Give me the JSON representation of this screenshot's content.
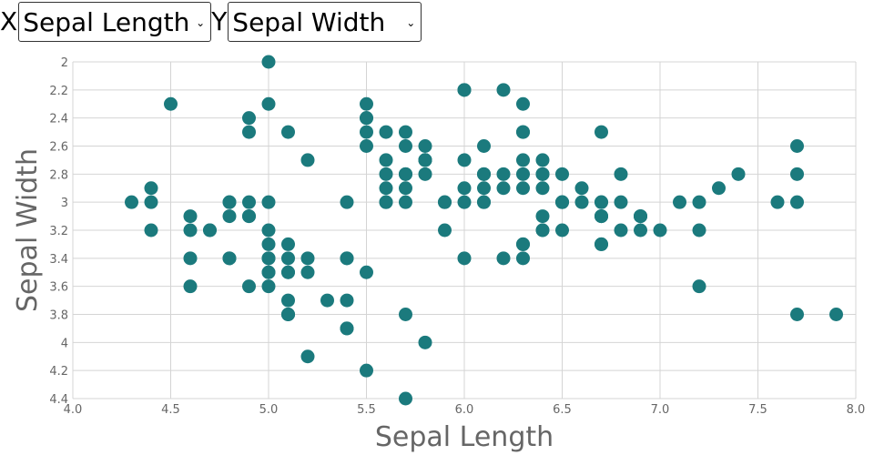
{
  "controls": {
    "x_prefix": "X",
    "y_prefix": "Y",
    "x_selected": "Sepal Length",
    "y_selected": "Sepal Width"
  },
  "colors": {
    "point": "#1b7a7d",
    "grid": "#d4d4d4",
    "label": "#666666"
  },
  "chart_data": {
    "type": "scatter",
    "xlabel": "Sepal Length",
    "ylabel": "Sepal Width",
    "xlim": [
      4.0,
      8.0
    ],
    "ylim": [
      2.0,
      4.4
    ],
    "y_inverted": true,
    "grid": true,
    "x_ticks": [
      "4.0",
      "4.5",
      "5.0",
      "5.5",
      "6.0",
      "6.5",
      "7.0",
      "7.5",
      "8.0"
    ],
    "y_ticks": [
      "2",
      "2.2",
      "2.4",
      "2.6",
      "2.8",
      "3",
      "3.2",
      "3.4",
      "3.6",
      "3.8",
      "4",
      "4.2",
      "4.4"
    ],
    "points": [
      [
        5.1,
        3.5
      ],
      [
        4.9,
        3.0
      ],
      [
        4.7,
        3.2
      ],
      [
        4.6,
        3.1
      ],
      [
        5.0,
        3.6
      ],
      [
        5.4,
        3.9
      ],
      [
        4.6,
        3.4
      ],
      [
        5.0,
        3.4
      ],
      [
        4.4,
        2.9
      ],
      [
        4.9,
        3.1
      ],
      [
        5.4,
        3.7
      ],
      [
        4.8,
        3.4
      ],
      [
        4.8,
        3.0
      ],
      [
        4.3,
        3.0
      ],
      [
        5.8,
        4.0
      ],
      [
        5.7,
        4.4
      ],
      [
        5.4,
        3.9
      ],
      [
        5.1,
        3.5
      ],
      [
        5.7,
        3.8
      ],
      [
        5.1,
        3.8
      ],
      [
        5.4,
        3.4
      ],
      [
        5.1,
        3.7
      ],
      [
        4.6,
        3.6
      ],
      [
        5.1,
        3.3
      ],
      [
        4.8,
        3.4
      ],
      [
        5.0,
        3.0
      ],
      [
        5.0,
        3.4
      ],
      [
        5.2,
        3.5
      ],
      [
        5.2,
        3.4
      ],
      [
        4.7,
        3.2
      ],
      [
        4.8,
        3.1
      ],
      [
        5.4,
        3.4
      ],
      [
        5.2,
        4.1
      ],
      [
        5.5,
        4.2
      ],
      [
        4.9,
        3.1
      ],
      [
        5.0,
        3.2
      ],
      [
        5.5,
        3.5
      ],
      [
        4.9,
        3.6
      ],
      [
        4.4,
        3.0
      ],
      [
        5.1,
        3.4
      ],
      [
        5.0,
        3.5
      ],
      [
        4.5,
        2.3
      ],
      [
        4.4,
        3.2
      ],
      [
        5.0,
        3.5
      ],
      [
        5.1,
        3.8
      ],
      [
        4.8,
        3.0
      ],
      [
        5.1,
        3.8
      ],
      [
        4.6,
        3.2
      ],
      [
        5.3,
        3.7
      ],
      [
        5.0,
        3.3
      ],
      [
        7.0,
        3.2
      ],
      [
        6.4,
        3.2
      ],
      [
        6.9,
        3.1
      ],
      [
        5.5,
        2.3
      ],
      [
        6.5,
        2.8
      ],
      [
        5.7,
        2.8
      ],
      [
        6.3,
        3.3
      ],
      [
        4.9,
        2.4
      ],
      [
        6.6,
        2.9
      ],
      [
        5.2,
        2.7
      ],
      [
        5.0,
        2.0
      ],
      [
        5.9,
        3.0
      ],
      [
        6.0,
        2.2
      ],
      [
        6.1,
        2.9
      ],
      [
        5.6,
        2.9
      ],
      [
        6.7,
        3.1
      ],
      [
        5.6,
        3.0
      ],
      [
        5.8,
        2.7
      ],
      [
        6.2,
        2.2
      ],
      [
        5.6,
        2.5
      ],
      [
        5.9,
        3.2
      ],
      [
        6.1,
        2.8
      ],
      [
        6.3,
        2.5
      ],
      [
        6.1,
        2.8
      ],
      [
        6.4,
        2.9
      ],
      [
        6.6,
        3.0
      ],
      [
        6.8,
        2.8
      ],
      [
        6.7,
        3.0
      ],
      [
        6.0,
        2.9
      ],
      [
        5.7,
        2.6
      ],
      [
        5.5,
        2.4
      ],
      [
        5.5,
        2.4
      ],
      [
        5.8,
        2.7
      ],
      [
        6.0,
        2.7
      ],
      [
        5.4,
        3.0
      ],
      [
        6.0,
        3.4
      ],
      [
        6.7,
        3.1
      ],
      [
        6.3,
        2.3
      ],
      [
        5.6,
        3.0
      ],
      [
        5.5,
        2.5
      ],
      [
        5.5,
        2.6
      ],
      [
        6.1,
        3.0
      ],
      [
        5.8,
        2.6
      ],
      [
        5.0,
        2.3
      ],
      [
        5.6,
        2.7
      ],
      [
        5.7,
        3.0
      ],
      [
        5.7,
        2.9
      ],
      [
        6.2,
        2.9
      ],
      [
        5.1,
        2.5
      ],
      [
        5.7,
        2.8
      ],
      [
        6.3,
        3.3
      ],
      [
        5.8,
        2.7
      ],
      [
        7.1,
        3.0
      ],
      [
        6.3,
        2.9
      ],
      [
        6.5,
        3.0
      ],
      [
        7.6,
        3.0
      ],
      [
        4.9,
        2.5
      ],
      [
        7.3,
        2.9
      ],
      [
        6.7,
        2.5
      ],
      [
        7.2,
        3.6
      ],
      [
        6.5,
        3.2
      ],
      [
        6.4,
        2.7
      ],
      [
        6.8,
        3.0
      ],
      [
        5.7,
        2.5
      ],
      [
        5.8,
        2.8
      ],
      [
        6.4,
        3.2
      ],
      [
        6.5,
        3.0
      ],
      [
        7.7,
        3.8
      ],
      [
        7.7,
        2.6
      ],
      [
        6.0,
        2.2
      ],
      [
        6.9,
        3.2
      ],
      [
        5.6,
        2.8
      ],
      [
        7.7,
        2.8
      ],
      [
        6.3,
        2.7
      ],
      [
        6.7,
        3.3
      ],
      [
        7.2,
        3.2
      ],
      [
        6.2,
        2.8
      ],
      [
        6.1,
        3.0
      ],
      [
        6.4,
        2.8
      ],
      [
        7.2,
        3.0
      ],
      [
        7.4,
        2.8
      ],
      [
        7.9,
        3.8
      ],
      [
        6.4,
        2.8
      ],
      [
        6.3,
        2.8
      ],
      [
        6.1,
        2.6
      ],
      [
        7.7,
        3.0
      ],
      [
        6.3,
        3.4
      ],
      [
        6.4,
        3.1
      ],
      [
        6.0,
        3.0
      ],
      [
        6.9,
        3.1
      ],
      [
        6.7,
        3.1
      ],
      [
        6.9,
        3.1
      ],
      [
        5.8,
        2.7
      ],
      [
        6.8,
        3.2
      ],
      [
        6.7,
        3.3
      ],
      [
        6.7,
        3.0
      ],
      [
        6.3,
        2.5
      ],
      [
        6.5,
        3.0
      ],
      [
        6.2,
        3.4
      ],
      [
        5.9,
        3.0
      ]
    ]
  }
}
